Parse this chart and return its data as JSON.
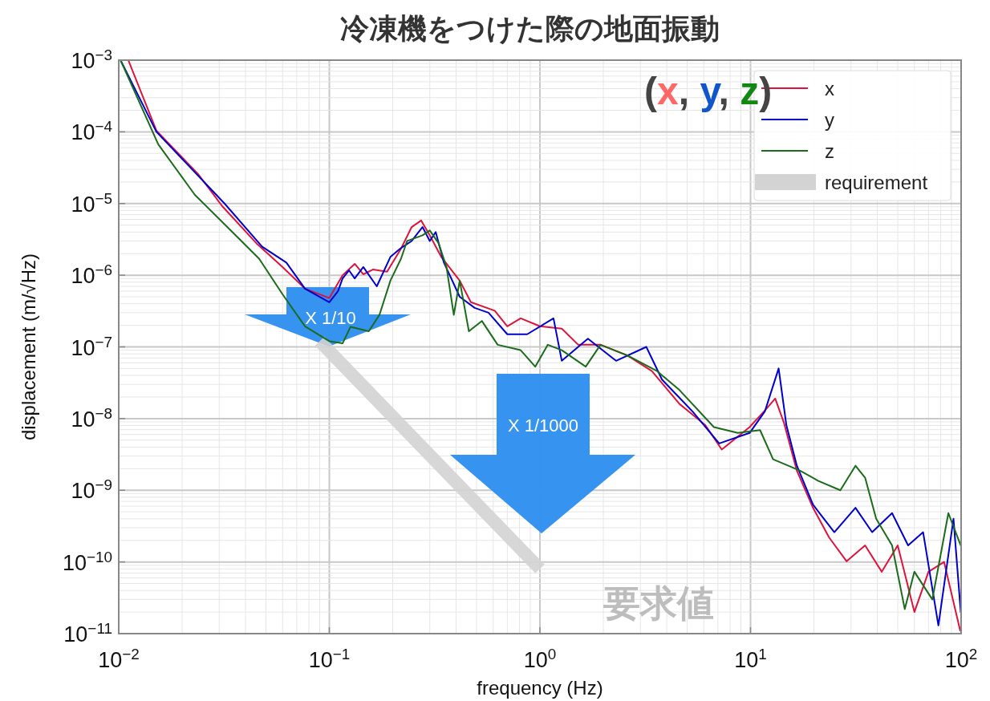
{
  "chart_data": {
    "type": "line",
    "title": "冷凍機をつけた際の地面振動",
    "xlabel": "frequency (Hz)",
    "ylabel": "displacement (m/√Hz)",
    "log": "xy",
    "grid": true,
    "legend": "top right",
    "xlim": [
      0.01,
      100
    ],
    "ylim": [
      1e-11,
      0.001
    ],
    "xticks": [
      {
        "value": 0.01,
        "label": "10$^{−2}$"
      },
      {
        "value": 0.1,
        "label": "10$^{−1}$"
      },
      {
        "value": 1,
        "label": "10$^{0}$"
      },
      {
        "value": 10,
        "label": "10$^{1}$"
      },
      {
        "value": 100,
        "label": "10$^{2}$"
      }
    ],
    "yticks": [
      {
        "value": 1e-11,
        "label": "10$^{−11}$"
      },
      {
        "value": 1e-10,
        "label": "10$^{−10}$"
      },
      {
        "value": 1e-09,
        "label": "10$^{−9}$"
      },
      {
        "value": 1e-08,
        "label": "10$^{−8}$"
      },
      {
        "value": 1e-07,
        "label": "10$^{−7}$"
      },
      {
        "value": 1e-06,
        "label": "10$^{−6}$"
      },
      {
        "value": 1e-05,
        "label": "10$^{−5}$"
      },
      {
        "value": 0.0001,
        "label": "10$^{−4}$"
      },
      {
        "value": 0.001,
        "label": "10$^{−3}$"
      }
    ],
    "series": [
      {
        "name": "x",
        "color": "#dc143c",
        "x": [
          0.0111,
          0.0151,
          0.0238,
          0.031,
          0.045,
          0.06,
          0.0766,
          0.1,
          0.1156,
          0.132,
          0.145,
          0.161,
          0.188,
          0.219,
          0.246,
          0.273,
          0.3,
          0.34,
          0.416,
          0.47,
          0.61,
          0.7,
          0.81,
          1.0,
          1.27,
          1.52,
          1.94,
          2.6,
          3.4,
          4.6,
          6.1,
          7.3,
          9.9,
          11.6,
          13.1,
          14.4,
          16.6,
          19.8,
          23.6,
          28.6,
          35,
          42,
          50,
          60,
          70,
          83,
          99
        ],
        "values": [
          0.001,
          0.000104,
          2.58e-05,
          9.2e-06,
          2.8e-06,
          1.3e-06,
          6.5e-07,
          4.8e-07,
          1e-06,
          1.44e-06,
          1.03e-06,
          1.2e-06,
          1.12e-06,
          2.35e-06,
          4.7e-06,
          5.8e-06,
          3.6e-06,
          1.8e-06,
          8.4e-07,
          4.2e-07,
          3.2e-07,
          1.94e-07,
          2.5e-07,
          1.94e-07,
          1.8e-07,
          1.07e-07,
          1.07e-07,
          7.6e-08,
          4.6e-08,
          1.6e-08,
          8.1e-09,
          3.7e-09,
          7.6e-09,
          1.26e-08,
          1.9e-08,
          8.8e-09,
          1.87e-09,
          5.7e-10,
          2.2e-10,
          1.02e-10,
          1.7e-10,
          7.3e-11,
          1.7e-10,
          2e-11,
          7.3e-11,
          1e-10,
          1.1e-11
        ]
      },
      {
        "name": "y",
        "color": "#0000cd",
        "x": [
          0.0102,
          0.0151,
          0.0318,
          0.048,
          0.0625,
          0.0766,
          0.1,
          0.11,
          0.1156,
          0.124,
          0.132,
          0.145,
          0.168,
          0.195,
          0.217,
          0.246,
          0.277,
          0.3,
          0.32,
          0.35,
          0.416,
          0.49,
          0.57,
          0.7,
          0.87,
          1.16,
          1.27,
          1.69,
          2.3,
          3.2,
          3.8,
          5.3,
          7.1,
          9.9,
          11.7,
          13.6,
          14.8,
          16.6,
          19.8,
          25,
          31.5,
          37.8,
          47,
          56,
          66,
          78,
          92,
          99.6
        ],
        "values": [
          0.001,
          0.0001,
          1e-05,
          2.5e-06,
          1.5e-06,
          6.5e-07,
          4.2e-07,
          6e-07,
          9e-07,
          1.17e-06,
          9e-07,
          1.3e-06,
          7e-07,
          1.8e-06,
          2.35e-06,
          3e-06,
          4.7e-06,
          3e-06,
          4e-06,
          1.5e-06,
          5e-07,
          3.5e-07,
          3e-07,
          1.5e-07,
          1.5e-07,
          2.5e-07,
          6.4e-08,
          1.3e-07,
          6.4e-08,
          1e-07,
          3.5e-08,
          1.26e-08,
          4.5e-09,
          6.3e-09,
          1.26e-08,
          5e-08,
          8.1e-09,
          2.2e-09,
          6.3e-10,
          2.6e-10,
          5.7e-10,
          2.6e-10,
          4.8e-10,
          1.7e-10,
          2.6e-10,
          1.3e-11,
          4e-10,
          2e-11
        ]
      },
      {
        "name": "z",
        "color": "#1a6b1a",
        "x": [
          0.0102,
          0.0154,
          0.023,
          0.037,
          0.0464,
          0.06,
          0.0766,
          0.1,
          0.1156,
          0.126,
          0.154,
          0.173,
          0.195,
          0.219,
          0.234,
          0.277,
          0.3,
          0.33,
          0.36,
          0.39,
          0.416,
          0.46,
          0.53,
          0.63,
          0.81,
          0.95,
          1.09,
          1.27,
          1.65,
          1.94,
          2.6,
          3.6,
          4.6,
          6.7,
          8.7,
          11.1,
          12.8,
          17.2,
          21,
          26.7,
          31.5,
          35,
          39.5,
          47,
          54,
          60,
          73,
          87,
          99.6
        ],
        "values": [
          0.001,
          6.7e-05,
          1.32e-05,
          3.3e-06,
          1.7e-06,
          5.4e-07,
          1.94e-07,
          1.2e-07,
          1.12e-07,
          1.9e-07,
          1.65e-07,
          2.8e-07,
          8.4e-07,
          1.7e-06,
          3e-06,
          3.6e-06,
          4.2e-06,
          2.8e-06,
          1.3e-06,
          2.8e-07,
          8.4e-07,
          1.65e-07,
          2.3e-07,
          1.07e-07,
          9e-08,
          5.3e-08,
          1.07e-07,
          9e-08,
          5.3e-08,
          1.07e-07,
          7.6e-08,
          4.6e-08,
          2.5e-08,
          7.6e-09,
          6.3e-09,
          6.9e-09,
          2.7e-09,
          1.87e-09,
          1.35e-09,
          1e-09,
          2.2e-09,
          1.5e-09,
          4e-10,
          1.7e-10,
          2.2e-11,
          7.3e-11,
          3e-11,
          4.8e-10,
          1.7e-10
        ]
      },
      {
        "name": "requirement",
        "color": "#d3d3d3",
        "x": [
          0.09,
          1.0
        ],
        "values": [
          1.2e-07,
          8e-11
        ]
      }
    ],
    "annotations": [
      "(x, y, z)",
      "X 1/10",
      "X 1/1000",
      "要求値"
    ]
  }
}
